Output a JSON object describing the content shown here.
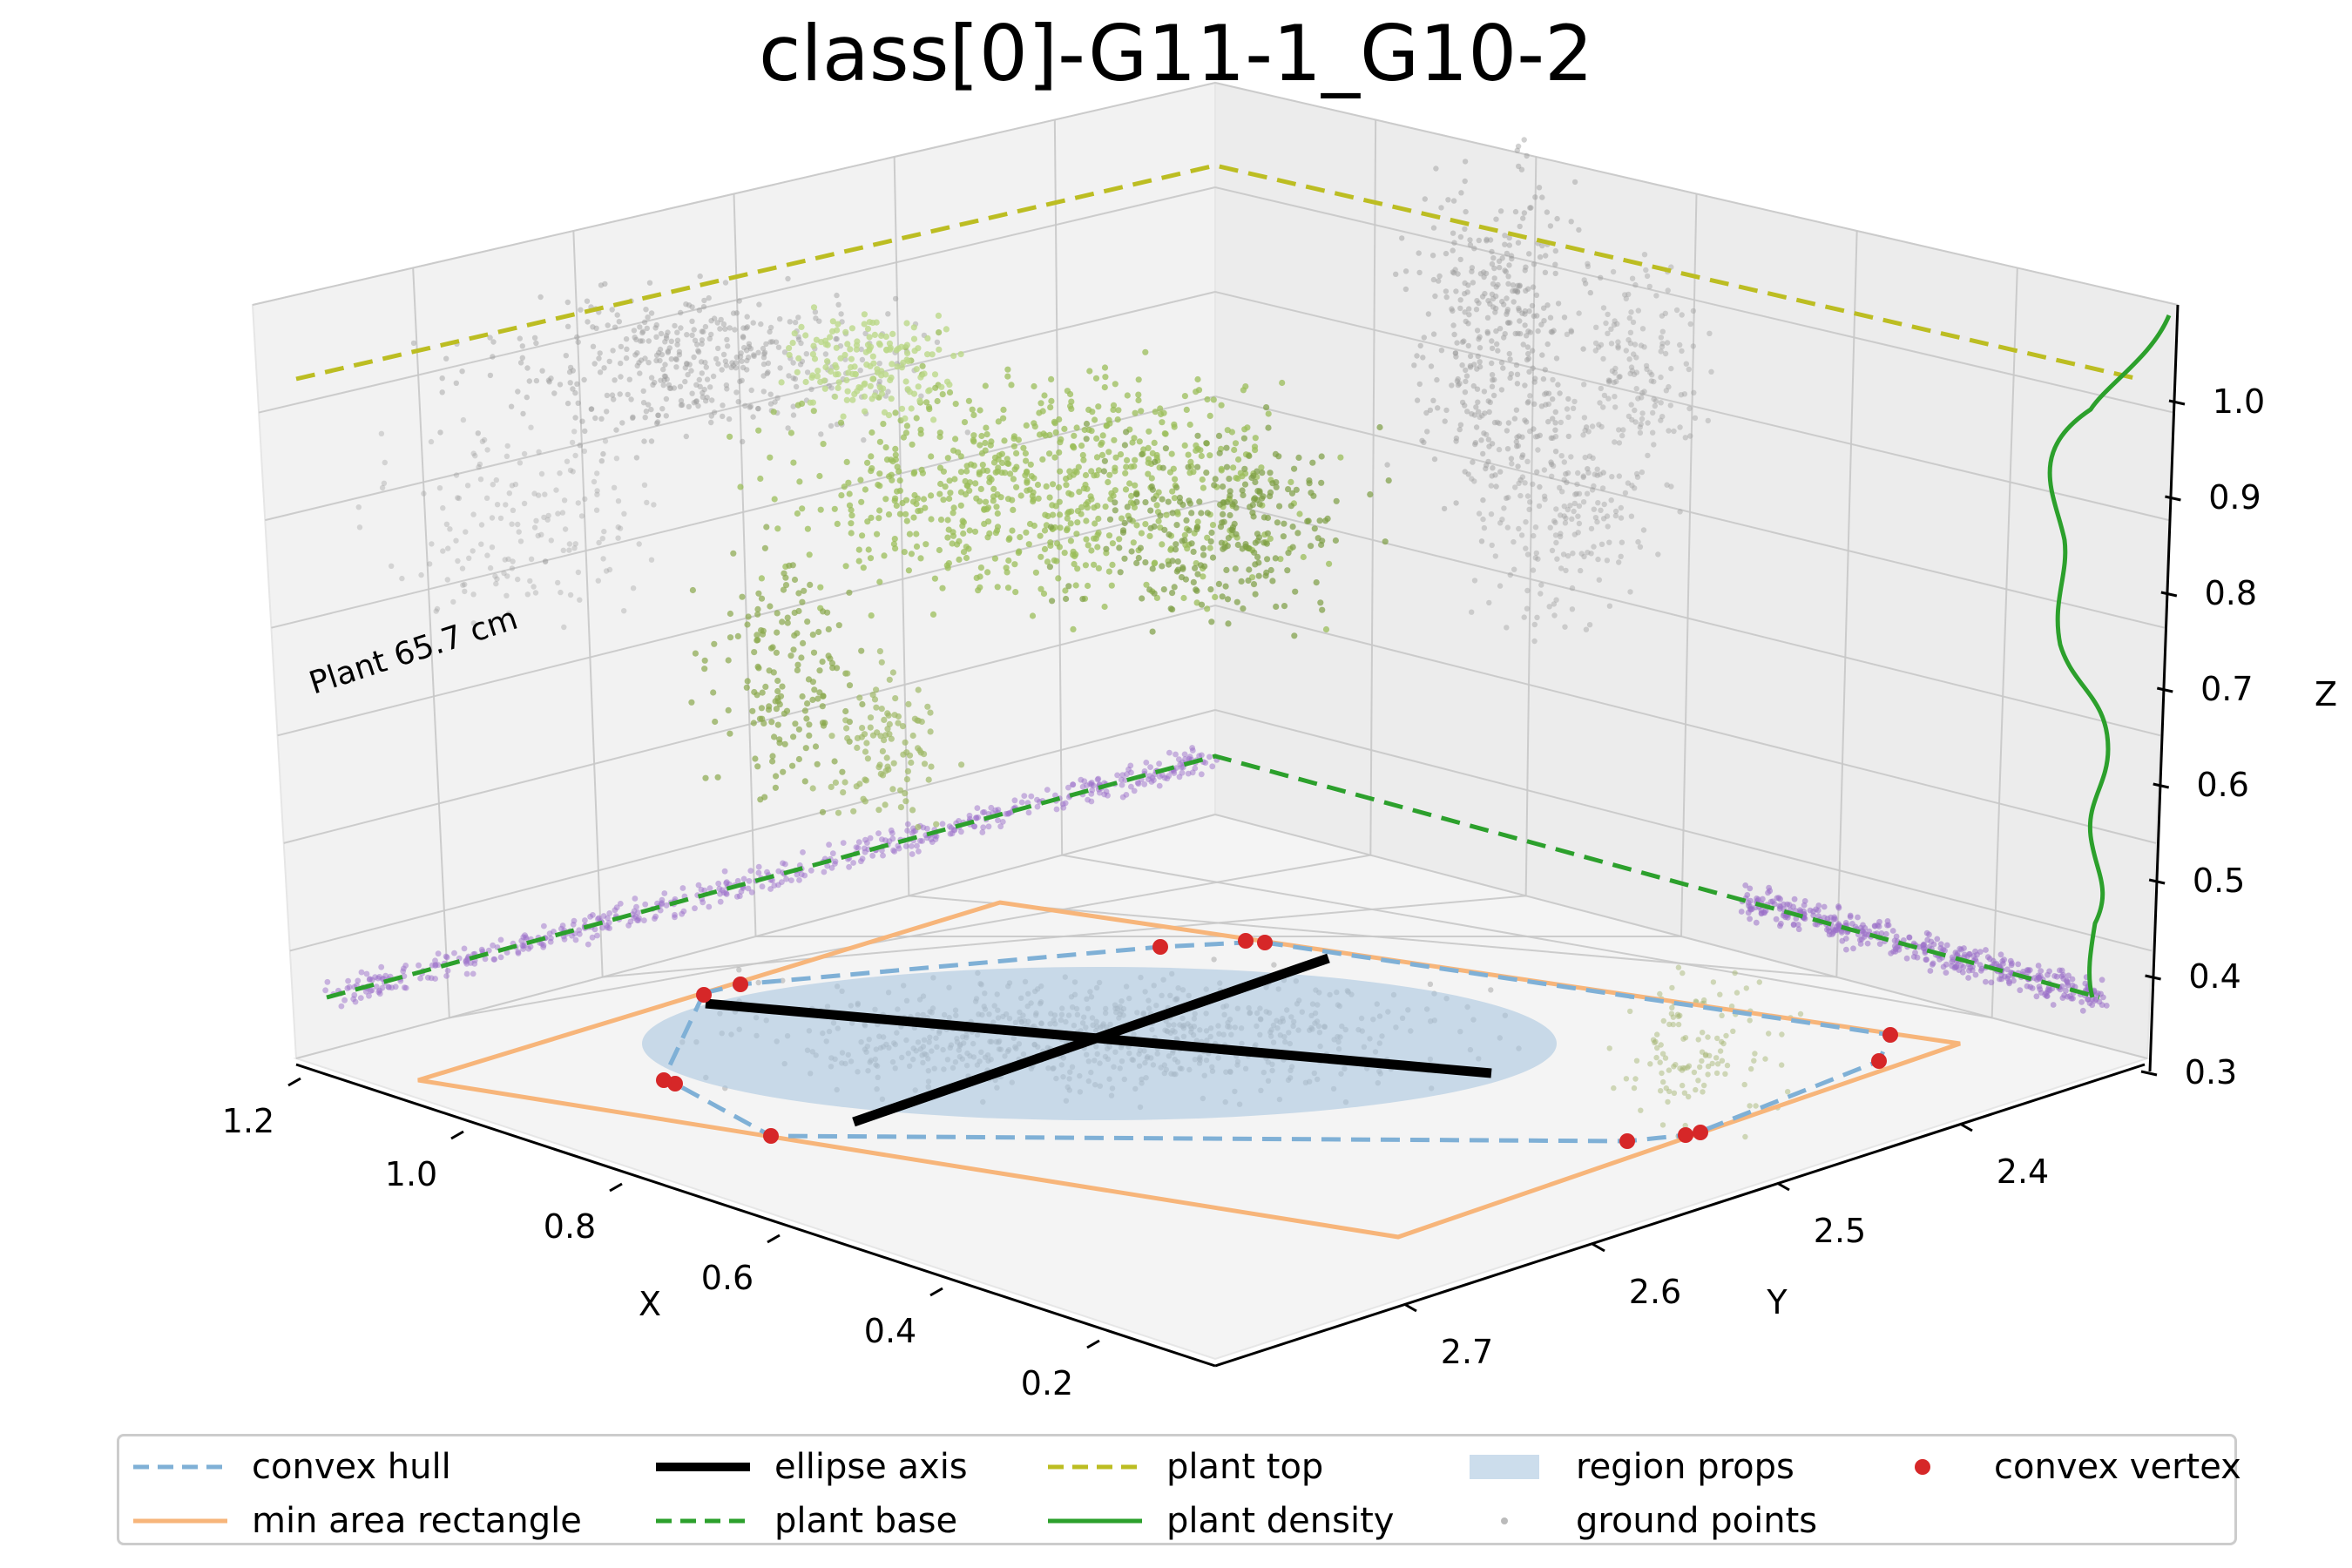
{
  "title": "class[0]-G11-1_G10-2",
  "annotation": "Plant 65.7 cm",
  "colors": {
    "convex_hull": "#7fb0d6",
    "min_rect": "#f7b57a",
    "ellipse_axis": "#000000",
    "plant_base": "#2ca02c",
    "plant_top": "#bcbd22",
    "plant_density": "#2ca02c",
    "region_props": "#aac7df",
    "convex_vertex": "#d62728",
    "ground_points": "#9a9a9a",
    "green_points": "#9bbd5a",
    "purple_points": "#9b6fc9"
  },
  "chart_data": {
    "type": "scatter3d",
    "axes": {
      "x": {
        "label": "X",
        "ticks": [
          "1.2",
          "1.0",
          "0.8",
          "0.6",
          "0.4",
          "0.2"
        ]
      },
      "y": {
        "label": "Y",
        "ticks": [
          "2.4",
          "2.5",
          "2.6",
          "2.7"
        ]
      },
      "z": {
        "label": "Z",
        "ticks": [
          "0.3",
          "0.4",
          "0.5",
          "0.6",
          "0.7",
          "0.8",
          "0.9",
          "1.0"
        ]
      }
    },
    "plant_base_z": 0.4,
    "plant_top_z": 1.05,
    "legend": [
      {
        "key": "convex_hull",
        "label": "convex hull",
        "style": "dashed-line"
      },
      {
        "key": "ellipse_axis",
        "label": "ellipse axis",
        "style": "thick-line"
      },
      {
        "key": "plant_top",
        "label": "plant top",
        "style": "dashed-line"
      },
      {
        "key": "region_props",
        "label": "region props",
        "style": "patch"
      },
      {
        "key": "convex_vertex",
        "label": "convex vertex",
        "style": "dot"
      },
      {
        "key": "min_rect",
        "label": "min area rectangle",
        "style": "line"
      },
      {
        "key": "plant_base",
        "label": "plant base",
        "style": "dashed-line"
      },
      {
        "key": "plant_density",
        "label": "plant density",
        "style": "line"
      },
      {
        "key": "ground_points",
        "label": "ground points",
        "style": "small-dot"
      }
    ]
  }
}
